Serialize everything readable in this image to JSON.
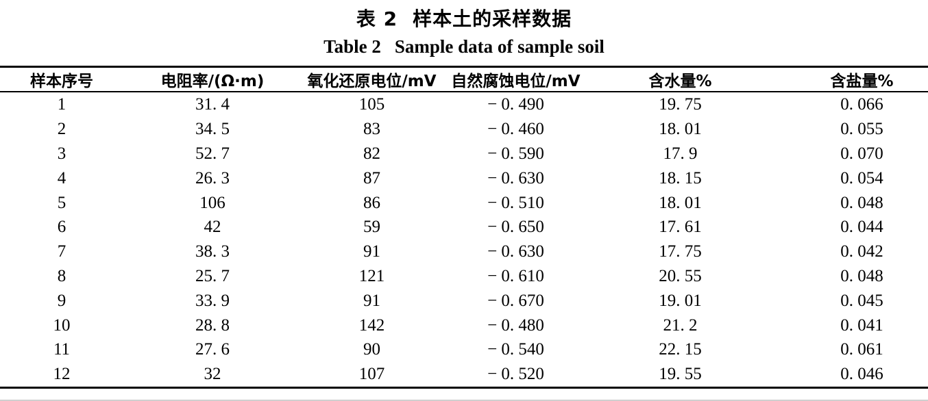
{
  "page": {
    "background": "#ffffff",
    "text_color": "#000000",
    "rule_color": "#000000"
  },
  "titles": {
    "cn_label": "表 2",
    "cn_text": "样本土的采样数据",
    "en_label": "Table 2",
    "en_text": "Sample data of sample soil"
  },
  "table": {
    "headers": [
      "样本序号",
      "电阻率/(Ω·m)",
      "氧化还原电位/mV",
      "自然腐蚀电位/mV",
      "含水量%",
      "含盐量%"
    ],
    "rows": [
      [
        "1",
        "31. 4",
        "105",
        "− 0. 490",
        "19. 75",
        "0. 066"
      ],
      [
        "2",
        "34. 5",
        "83",
        "− 0. 460",
        "18. 01",
        "0. 055"
      ],
      [
        "3",
        "52. 7",
        "82",
        "− 0. 590",
        "17. 9",
        "0. 070"
      ],
      [
        "4",
        "26. 3",
        "87",
        "− 0. 630",
        "18. 15",
        "0. 054"
      ],
      [
        "5",
        "106",
        "86",
        "− 0. 510",
        "18. 01",
        "0. 048"
      ],
      [
        "6",
        "42",
        "59",
        "− 0. 650",
        "17. 61",
        "0. 044"
      ],
      [
        "7",
        "38. 3",
        "91",
        "− 0. 630",
        "17. 75",
        "0. 042"
      ],
      [
        "8",
        "25. 7",
        "121",
        "− 0. 610",
        "20. 55",
        "0. 048"
      ],
      [
        "9",
        "33. 9",
        "91",
        "− 0. 670",
        "19. 01",
        "0. 045"
      ],
      [
        "10",
        "28. 8",
        "142",
        "− 0. 480",
        "21. 2",
        "0. 041"
      ],
      [
        "11",
        "27. 6",
        "90",
        "− 0. 540",
        "22. 15",
        "0. 061"
      ],
      [
        "12",
        "32",
        "107",
        "− 0. 520",
        "19. 55",
        "0. 046"
      ]
    ]
  }
}
